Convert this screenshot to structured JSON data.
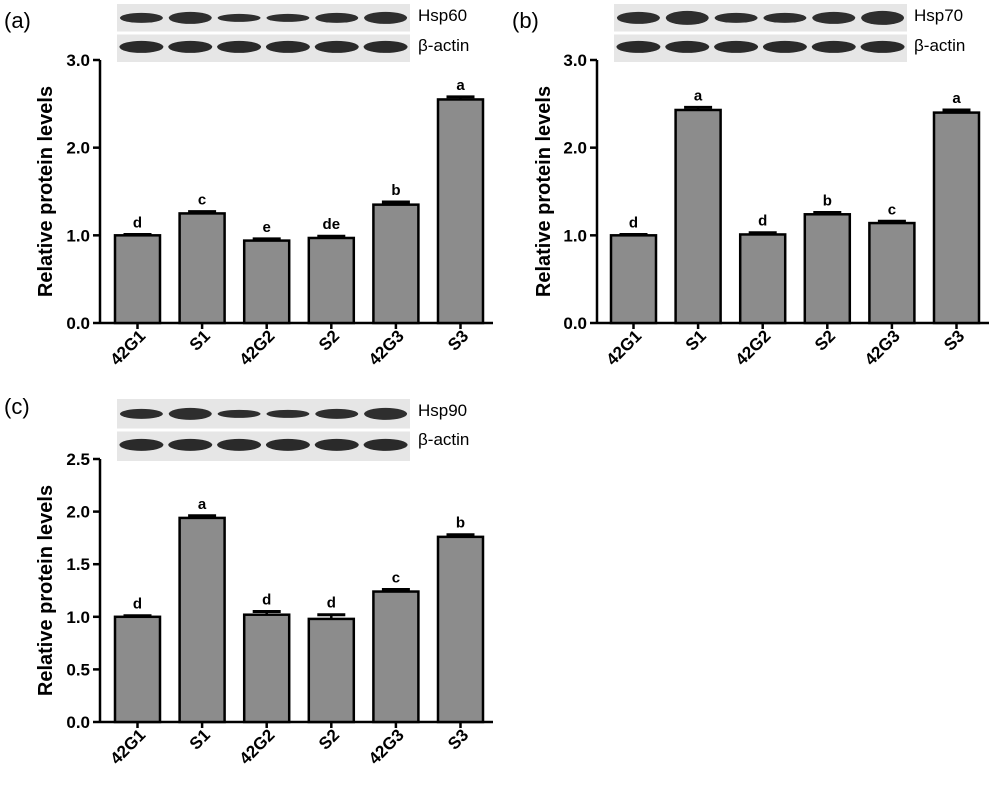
{
  "panels": [
    {
      "letter": "(a)",
      "blot_labels": [
        "Hsp60",
        "β-actin"
      ],
      "colors": {
        "bar_fill": "#8c8c8c",
        "bar_stroke": "#000000",
        "blot_bg": "#e6e6e6",
        "band": "#1a1a1a"
      }
    },
    {
      "letter": "(b)",
      "blot_labels": [
        "Hsp70",
        "β-actin"
      ],
      "colors": {
        "bar_fill": "#8c8c8c",
        "bar_stroke": "#000000",
        "blot_bg": "#e6e6e6",
        "band": "#1a1a1a"
      }
    },
    {
      "letter": "(c)",
      "blot_labels": [
        "Hsp90",
        "β-actin"
      ],
      "colors": {
        "bar_fill": "#8c8c8c",
        "bar_stroke": "#000000",
        "blot_bg": "#e6e6e6",
        "band": "#1a1a1a"
      }
    }
  ],
  "chart_data": [
    {
      "type": "bar",
      "title": "",
      "xlabel": "",
      "ylabel": "Relative protein levels",
      "ylim": [
        0,
        3.0
      ],
      "yticks": [
        "0.0",
        "1.0",
        "2.0",
        "3.0"
      ],
      "categories": [
        "42G1",
        "S1",
        "42G2",
        "S2",
        "42G3",
        "S3"
      ],
      "values": [
        1.0,
        1.25,
        0.94,
        0.97,
        1.35,
        2.55
      ],
      "errors": [
        0.01,
        0.02,
        0.02,
        0.02,
        0.03,
        0.03
      ],
      "significance": [
        "d",
        "c",
        "e",
        "de",
        "b",
        "a"
      ],
      "grid": false
    },
    {
      "type": "bar",
      "title": "",
      "xlabel": "",
      "ylabel": "Relative protein levels",
      "ylim": [
        0,
        3.0
      ],
      "yticks": [
        "0.0",
        "1.0",
        "2.0",
        "3.0"
      ],
      "categories": [
        "42G1",
        "S1",
        "42G2",
        "S2",
        "42G3",
        "S3"
      ],
      "values": [
        1.0,
        2.43,
        1.01,
        1.24,
        1.14,
        2.4
      ],
      "errors": [
        0.01,
        0.03,
        0.02,
        0.02,
        0.02,
        0.03
      ],
      "significance": [
        "d",
        "a",
        "d",
        "b",
        "c",
        "a"
      ],
      "grid": false
    },
    {
      "type": "bar",
      "title": "",
      "xlabel": "",
      "ylabel": "Relative protein levels",
      "ylim": [
        0,
        2.5
      ],
      "yticks": [
        "0.0",
        "0.5",
        "1.0",
        "1.5",
        "2.0",
        "2.5"
      ],
      "categories": [
        "42G1",
        "S1",
        "42G2",
        "S2",
        "42G3",
        "S3"
      ],
      "values": [
        1.0,
        1.94,
        1.02,
        0.98,
        1.24,
        1.76
      ],
      "errors": [
        0.01,
        0.02,
        0.03,
        0.04,
        0.02,
        0.02
      ],
      "significance": [
        "d",
        "a",
        "d",
        "d",
        "c",
        "b"
      ],
      "grid": false
    }
  ]
}
